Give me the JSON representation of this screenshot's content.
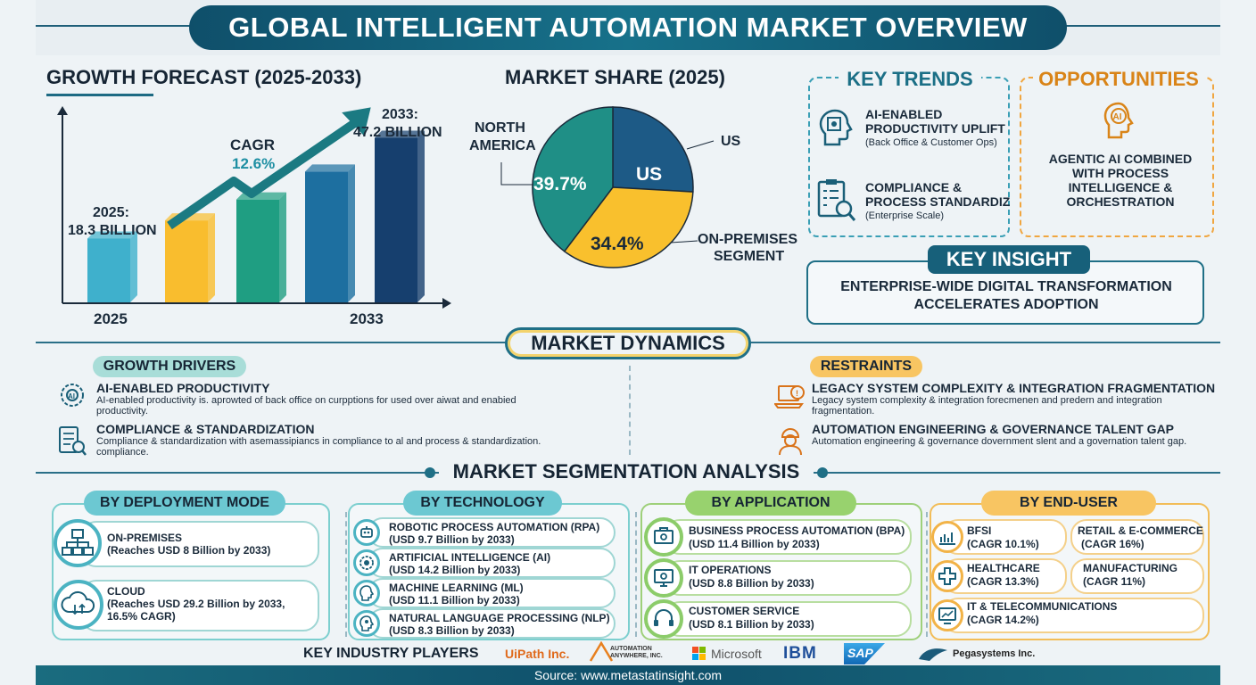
{
  "title": "GLOBAL INTELLIGENT AUTOMATION MARKET OVERVIEW",
  "growth": {
    "heading": "GROWTH FORECAST (2025-2033)",
    "cagr_label": "CAGR",
    "cagr_value": "12.6%",
    "start_label": "2025:",
    "start_value": "18.3 BILLION",
    "end_label": "2033:",
    "end_value": "47.2 BILLION",
    "x_start": "2025",
    "x_end": "2033",
    "bar_colors": [
      "#3fb0cc",
      "#f9bd2e",
      "#1f9e82",
      "#1d6fa0",
      "#163f6e"
    ]
  },
  "chart_data": [
    {
      "type": "bar",
      "title": "GROWTH FORECAST (2025-2033)",
      "categories": [
        "2025",
        "",
        "",
        "",
        "2033"
      ],
      "values": [
        18.3,
        23.5,
        29.5,
        37.5,
        47.2
      ],
      "annotations": [
        "2025: 18.3 BILLION",
        "CAGR 12.6%",
        "2033: 47.2 BILLION"
      ]
    },
    {
      "type": "pie",
      "title": "MARKET SHARE (2025)",
      "labels": [
        "US",
        "ON-PREMISES SEGMENT",
        "NORTH AMERICA"
      ],
      "slice_labels": [
        "US",
        "34.4%",
        "39.7%"
      ],
      "values": [
        25.9,
        34.4,
        39.7
      ],
      "colors": [
        "#1d5a86",
        "#f9c02d",
        "#1f8f86"
      ]
    }
  ],
  "share": {
    "heading": "MARKET SHARE (2025)",
    "label_na": "NORTH AMERICA",
    "label_us": "US",
    "label_onprem": "ON-PREMISES SEGMENT",
    "slice_na": "39.7%",
    "slice_us": "US",
    "slice_onprem": "34.4%"
  },
  "trends": {
    "heading": "KEY TRENDS",
    "items": [
      {
        "title": "AI-ENABLED PRODUCTIVITY UPLIFT",
        "sub": "(Back Office & Customer Ops)"
      },
      {
        "title": "COMPLIANCE & PROCESS STANDARDIZ",
        "sub": "(Enterprise Scale)"
      }
    ]
  },
  "opportunities": {
    "heading": "OPPORTUNITIES",
    "icon_text": "AI",
    "text": "AGENTIC AI COMBINED WITH PROCESS INTELLIGENCE & ORCHESTRATION"
  },
  "insight": {
    "heading": "KEY INSIGHT",
    "text": "ENTERPRISE-WIDE DIGITAL TRANSFORMATION ACCELERATES ADOPTION"
  },
  "dynamics": {
    "heading": "MARKET DYNAMICS",
    "drivers_label": "GROWTH DRIVERS",
    "drivers": [
      {
        "title": "AI-ENABLED PRODUCTIVITY",
        "text": "AI-enabled productivity is. aprowted of back office on curpptions for used over aiwat and enabied productivity."
      },
      {
        "title": "COMPLIANCE & STANDARDIZATION",
        "text": "Compliance & standardization with asemassipiancs in compliance to al and process & standardization. compliance."
      }
    ],
    "restraints_label": "RESTRAINTS",
    "restraints": [
      {
        "title": "LEGACY SYSTEM COMPLEXITY & INTEGRATION FRAGMENTATION",
        "text": "Legacy system complexity & integration forecmenen and predern and integration fragmentation."
      },
      {
        "title": "AUTOMATION ENGINEERING & GOVERNANCE TALENT GAP",
        "text": "Automation engineering & governance dovernment slent and a governation talent gap."
      }
    ]
  },
  "segmentation": {
    "heading": "MARKET SEGMENTATION ANALYSIS",
    "deployment": {
      "label": "BY DEPLOYMENT MODE",
      "items": [
        {
          "title": "ON-PREMISES",
          "sub": "(Reaches USD 8 Billion by 2033)"
        },
        {
          "title": "CLOUD",
          "sub": "(Reaches USD 29.2 Billion by 2033, 16.5% CAGR)"
        }
      ]
    },
    "technology": {
      "label": "BY TECHNOLOGY",
      "items": [
        {
          "title": "ROBOTIC PROCESS AUTOMATION (RPA)",
          "sub": "(USD 9.7 Billion by 2033)"
        },
        {
          "title": "ARTIFICIAL INTELLIGENCE (AI)",
          "sub": "(USD 14.2 Billion by 2033)"
        },
        {
          "title": "MACHINE LEARNING (ML)",
          "sub": "(USD 11.1 Billion by 2033)"
        },
        {
          "title": "NATURAL LANGUAGE PROCESSING (NLP)",
          "sub": "(USD 8.3 Billion by 2033)"
        }
      ]
    },
    "application": {
      "label": "BY APPLICATION",
      "items": [
        {
          "title": "BUSINESS PROCESS AUTOMATION (BPA)",
          "sub": "(USD 11.4 Billion by 2033)"
        },
        {
          "title": "IT OPERATIONS",
          "sub": "(USD 8.8 Billion by 2033)"
        },
        {
          "title": "CUSTOMER SERVICE",
          "sub": "(USD 8.1 Billion by 2033)"
        }
      ]
    },
    "enduser": {
      "label": "BY END-USER",
      "items": [
        {
          "title": "BFSI",
          "sub": "(CAGR 10.1%)"
        },
        {
          "title": "RETAIL & E-COMMERCE",
          "sub": "(CAGR 16%)"
        },
        {
          "title": "HEALTHCARE",
          "sub": "(CAGR 13.3%)"
        },
        {
          "title": "MANUFACTURING",
          "sub": "(CAGR 11%)"
        },
        {
          "title": "IT & TELECOMMUNICATIONS",
          "sub": "(CAGR 14.2%)"
        }
      ]
    }
  },
  "players": {
    "label": "KEY INDUSTRY PLAYERS",
    "logos": [
      "UiPath Inc.",
      "AUTOMATION ANYWHERE, INC.",
      "Microsoft",
      "IBM",
      "SAP",
      "Pegasystems Inc."
    ]
  },
  "footer": "Source: www.metastatinsight.com"
}
